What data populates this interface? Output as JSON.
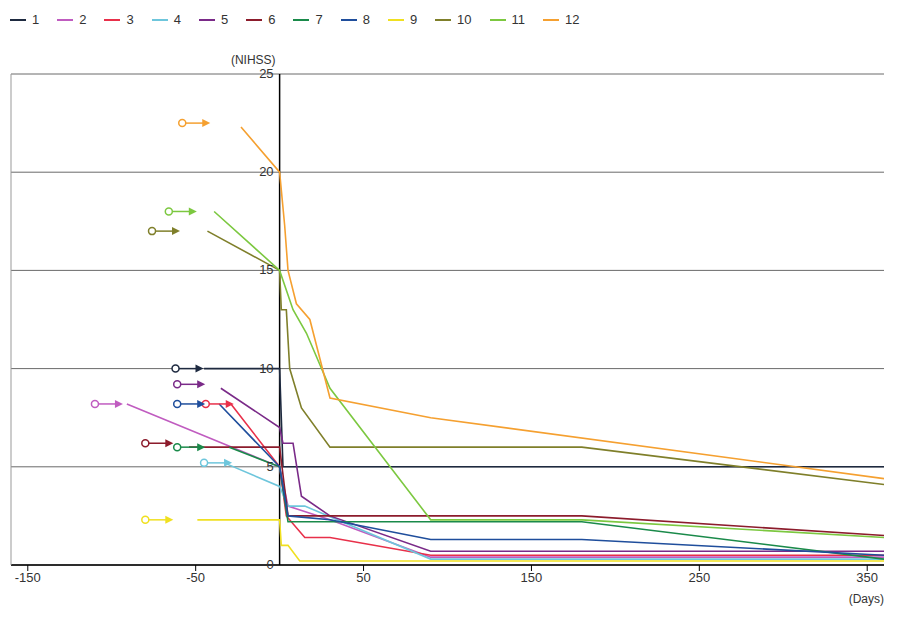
{
  "chart_data": {
    "type": "line",
    "y_label": "(NIHSS)",
    "x_label": "(Days)",
    "xlim": [
      -160,
      360
    ],
    "xticks": [
      -150,
      -50,
      50,
      150,
      250,
      350
    ],
    "ylim": [
      0,
      25
    ],
    "yticks": [
      0,
      5,
      10,
      15,
      20,
      25
    ],
    "grid": true,
    "legend": "top",
    "series": [
      {
        "name": "1",
        "color": "#1e2a40",
        "arrow": [
          -62,
          10
        ],
        "x": [
          -45,
          0,
          2,
          360
        ],
        "values": [
          10,
          10,
          5,
          5
        ]
      },
      {
        "name": "2",
        "color": "#c05cc0",
        "arrow": [
          -110,
          8.2
        ],
        "x": [
          -91,
          0,
          5,
          30,
          90,
          360
        ],
        "values": [
          8.2,
          5,
          3,
          2.3,
          0.4,
          0.4
        ]
      },
      {
        "name": "3",
        "color": "#e8304a",
        "arrow": [
          -44,
          8.2
        ],
        "x": [
          -29,
          0,
          4,
          15,
          30,
          90,
          360
        ],
        "values": [
          8.2,
          5,
          2.5,
          1.4,
          1.4,
          0.5,
          0.5
        ]
      },
      {
        "name": "4",
        "color": "#6ec6dc",
        "arrow": [
          -45,
          5.2
        ],
        "x": [
          -33,
          0,
          5,
          15,
          90,
          360
        ],
        "values": [
          5.2,
          4,
          3,
          3,
          0.3,
          0.3
        ]
      },
      {
        "name": "5",
        "color": "#7a2a88",
        "arrow": [
          -61,
          9.2
        ],
        "x": [
          -35,
          0,
          2,
          8,
          13,
          30,
          90,
          360
        ],
        "values": [
          9,
          7,
          6.2,
          6.2,
          3.5,
          2.5,
          0.7,
          0.7
        ]
      },
      {
        "name": "6",
        "color": "#8c1c2c",
        "arrow": [
          -80,
          6.2
        ],
        "x": [
          -54,
          0,
          5,
          30,
          180,
          360
        ],
        "values": [
          6,
          6,
          2.5,
          2.5,
          2.5,
          1.5
        ]
      },
      {
        "name": "7",
        "color": "#1a8a4a",
        "arrow": [
          -61,
          6
        ],
        "x": [
          -30,
          0,
          5,
          180,
          360
        ],
        "values": [
          6,
          5,
          2.2,
          2.2,
          0.3
        ]
      },
      {
        "name": "8",
        "color": "#1f4e9c",
        "arrow": [
          -61,
          8.2
        ],
        "x": [
          -36,
          0,
          5,
          30,
          90,
          180,
          360
        ],
        "values": [
          8.2,
          5,
          2.5,
          2.3,
          1.3,
          1.3,
          0.5
        ]
      },
      {
        "name": "9",
        "color": "#f0e020",
        "arrow": [
          -80,
          2.3
        ],
        "x": [
          -49,
          0,
          1,
          5,
          12,
          360
        ],
        "values": [
          2.3,
          2.3,
          1,
          1,
          0.2,
          0.2
        ]
      },
      {
        "name": "10",
        "color": "#7f7f2a",
        "arrow": [
          -76,
          17
        ],
        "x": [
          -43,
          0,
          1,
          4,
          6,
          13,
          30,
          180,
          360
        ],
        "values": [
          17,
          15,
          13,
          13,
          10,
          8,
          6,
          6,
          4.1
        ]
      },
      {
        "name": "11",
        "color": "#7cc840",
        "arrow": [
          -66,
          18
        ],
        "x": [
          -39,
          0,
          8,
          16,
          30,
          90,
          180,
          360
        ],
        "values": [
          18,
          15,
          13,
          11.8,
          9,
          2.3,
          2.3,
          1.4
        ]
      },
      {
        "name": "12",
        "color": "#f5a030",
        "arrow": [
          -58,
          22.5
        ],
        "x": [
          -23,
          0,
          3,
          5,
          10,
          18,
          30,
          90,
          360
        ],
        "values": [
          22.3,
          20,
          17.3,
          15,
          13.3,
          12.5,
          8.5,
          7.5,
          4.4
        ]
      }
    ]
  }
}
